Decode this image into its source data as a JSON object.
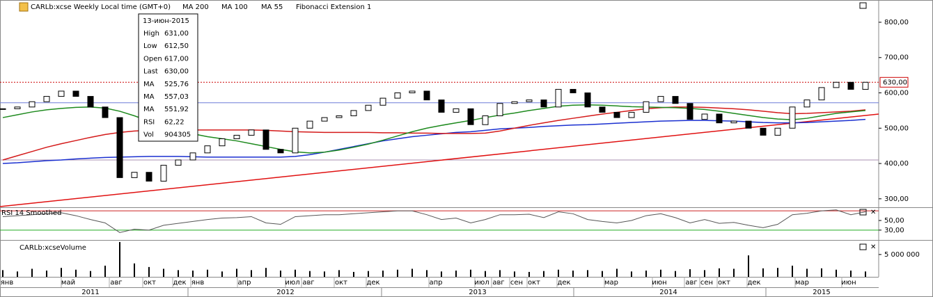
{
  "header": {
    "symbol": "CARLb:xcse Weekly Local time (GMT+0)",
    "fib": "Fibonacci Extension 1"
  },
  "tooltip": {
    "date": "13-июн-2015",
    "rows": [
      [
        "High",
        "631,00"
      ],
      [
        "Low",
        "612,50"
      ],
      [
        "Open",
        "617,00"
      ],
      [
        "Last",
        "630,00"
      ],
      [
        "MA",
        "525,76"
      ],
      [
        "MA",
        "557,03"
      ],
      [
        "MA",
        "551,92"
      ],
      [
        "RSI",
        "62,22"
      ],
      [
        "Vol",
        "904305"
      ]
    ]
  },
  "x_axis": {
    "months": [
      "янв",
      "май",
      "авг",
      "окт",
      "дек",
      "янв",
      "апр",
      "июл",
      "авг",
      "окт",
      "дек",
      "апр",
      "июл",
      "авг",
      "сен",
      "окт",
      "дек",
      "мар",
      "июн",
      "авг",
      "сен",
      "окт",
      "дек",
      "мар",
      "июн"
    ],
    "years": [
      "2011",
      "2012",
      "2013",
      "2014",
      "2015"
    ]
  },
  "chart_data": [
    {
      "type": "candlestick",
      "color_up": "#ffffff",
      "color_down": "#000000",
      "values": [
        555,
        560,
        575,
        590,
        605,
        590,
        560,
        530,
        360,
        375,
        350,
        395,
        410,
        430,
        450,
        470,
        480,
        495,
        440,
        430,
        500,
        520,
        530,
        535,
        550,
        565,
        585,
        600,
        605,
        580,
        545,
        555,
        510,
        535,
        570,
        575,
        580,
        560,
        610,
        600,
        560,
        545,
        530,
        545,
        575,
        590,
        570,
        525,
        540,
        515,
        520,
        500,
        480,
        500,
        560,
        580,
        615,
        630,
        610,
        630
      ],
      "moving_averages": [
        {
          "name": "MA 200",
          "color": "#1a2fd0",
          "values": [
            400,
            402,
            405,
            408,
            410,
            413,
            415,
            417,
            418,
            419,
            420,
            420,
            420,
            419,
            418,
            418,
            418,
            418,
            418,
            418,
            420,
            425,
            432,
            440,
            448,
            456,
            464,
            470,
            476,
            480,
            484,
            488,
            490,
            494,
            498,
            500,
            502,
            505,
            507,
            509,
            510,
            512,
            514,
            516,
            518,
            520,
            521,
            522,
            522,
            521,
            520,
            518,
            516,
            515,
            515,
            516,
            518,
            520,
            522,
            525
          ]
        },
        {
          "name": "MA 100",
          "color": "#d41a1a",
          "values": [
            410,
            422,
            434,
            446,
            456,
            465,
            474,
            482,
            488,
            492,
            494,
            495,
            495,
            495,
            495,
            495,
            495,
            495,
            494,
            492,
            490,
            489,
            488,
            488,
            488,
            488,
            487,
            487,
            486,
            486,
            485,
            485,
            485,
            486,
            492,
            500,
            508,
            515,
            522,
            528,
            534,
            540,
            545,
            550,
            555,
            558,
            560,
            560,
            559,
            557,
            555,
            552,
            548,
            544,
            541,
            542,
            544,
            546,
            548,
            552
          ]
        },
        {
          "name": "MA 55",
          "color": "#1e8a1e",
          "values": [
            530,
            538,
            546,
            552,
            556,
            559,
            560,
            557,
            548,
            535,
            520,
            506,
            494,
            484,
            476,
            470,
            464,
            456,
            448,
            440,
            433,
            430,
            432,
            438,
            446,
            455,
            466,
            478,
            490,
            500,
            508,
            515,
            522,
            530,
            537,
            543,
            550,
            556,
            562,
            565,
            566,
            565,
            563,
            561,
            560,
            559,
            558,
            556,
            553,
            548,
            542,
            536,
            530,
            526,
            524,
            528,
            535,
            542,
            546,
            550
          ]
        }
      ],
      "trendline": {
        "color": "#e01010",
        "values": [
          278,
          540
        ]
      },
      "fib_levels": [
        {
          "value": 572,
          "color": "#6d7bd8"
        },
        {
          "value": 410,
          "color": "#a88fb0"
        }
      ],
      "last_price": {
        "value": 630,
        "label": "630,00",
        "color": "#cc0000"
      },
      "ylim": [
        276,
        863
      ],
      "yticks": [
        {
          "value": 300,
          "label": "300,00"
        },
        {
          "value": 400,
          "label": "400,00"
        },
        {
          "value": 500,
          "label": "500,00"
        },
        {
          "value": 600,
          "label": "600,00"
        },
        {
          "value": 700,
          "label": "700,00"
        },
        {
          "value": 800,
          "label": "800,00"
        }
      ]
    },
    {
      "type": "line",
      "title": "RSI 14 Smoothed",
      "color": "#555555",
      "values": [
        58,
        60,
        62,
        64,
        66,
        60,
        52,
        45,
        25,
        32,
        30,
        40,
        44,
        48,
        52,
        55,
        56,
        58,
        45,
        42,
        58,
        60,
        62,
        62,
        64,
        66,
        68,
        70,
        70,
        62,
        52,
        55,
        45,
        52,
        62,
        62,
        63,
        56,
        68,
        64,
        52,
        48,
        45,
        50,
        60,
        64,
        56,
        45,
        52,
        44,
        46,
        40,
        35,
        42,
        62,
        65,
        70,
        72,
        62,
        68
      ],
      "levels": [
        {
          "value": 70,
          "color": "#cc2222"
        },
        {
          "value": 30,
          "color": "#22aa22"
        }
      ],
      "ylim": [
        11,
        76
      ],
      "yticks": [
        {
          "value": 50,
          "label": "50,00"
        },
        {
          "value": 30,
          "label": "30,00"
        }
      ]
    },
    {
      "type": "volume",
      "title": "CARLb:xcseVolume",
      "color": "#000000",
      "values": [
        1500000,
        1200000,
        1800000,
        1400000,
        2000000,
        1600000,
        1300000,
        2500000,
        7800000,
        3000000,
        2200000,
        1800000,
        1500000,
        1400000,
        1600000,
        1200000,
        1800000,
        1500000,
        2000000,
        1400000,
        1600000,
        1300000,
        1200000,
        1500000,
        1100000,
        1300000,
        1400000,
        1600000,
        1800000,
        1500000,
        1200000,
        1400000,
        1600000,
        1300000,
        1500000,
        1200000,
        1100000,
        1300000,
        1600000,
        1400000,
        1500000,
        1300000,
        1800000,
        1200000,
        1400000,
        1600000,
        1300000,
        1700000,
        1500000,
        1900000,
        1800000,
        4800000,
        1900000,
        2000000,
        2500000,
        1800000,
        1900000,
        1600000,
        1400000,
        1200000
      ],
      "ylim": [
        0,
        8100000
      ],
      "yticks": [
        {
          "value": 5000000,
          "label": "5 000 000"
        }
      ]
    }
  ]
}
